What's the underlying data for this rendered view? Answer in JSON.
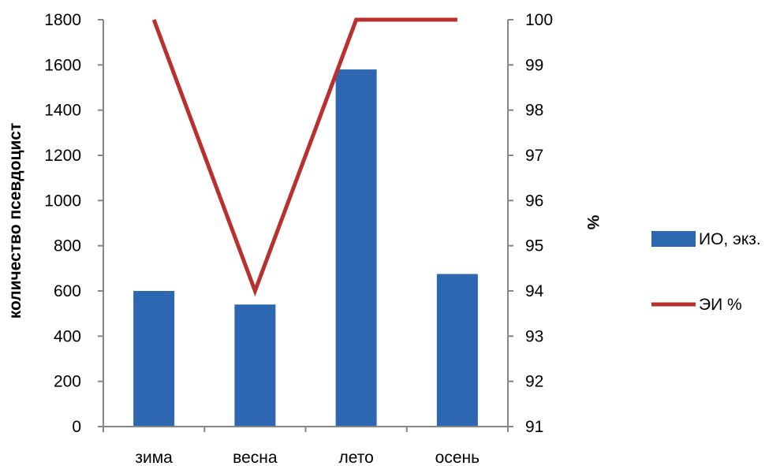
{
  "chart_data": {
    "type": "bar",
    "categories": [
      "зима",
      "весна",
      "лето",
      "осень"
    ],
    "series": [
      {
        "name": "ИО, экз.",
        "kind": "bar",
        "axis": "left",
        "values": [
          600,
          540,
          1580,
          675
        ],
        "color": "#2E67B1"
      },
      {
        "name": "ЭИ %",
        "kind": "line",
        "axis": "right",
        "values": [
          100,
          94,
          100,
          100
        ],
        "color": "#B8312F"
      }
    ],
    "y_left": {
      "label": "количество псевдоцист",
      "ylim": [
        0,
        1800
      ],
      "ticks": [
        0,
        200,
        400,
        600,
        800,
        1000,
        1200,
        1400,
        1600,
        1800
      ]
    },
    "y_right": {
      "label": "%",
      "ylim": [
        91,
        100
      ],
      "ticks": [
        91,
        92,
        93,
        94,
        95,
        96,
        97,
        98,
        99,
        100
      ]
    },
    "grid": false,
    "legend": "right"
  }
}
